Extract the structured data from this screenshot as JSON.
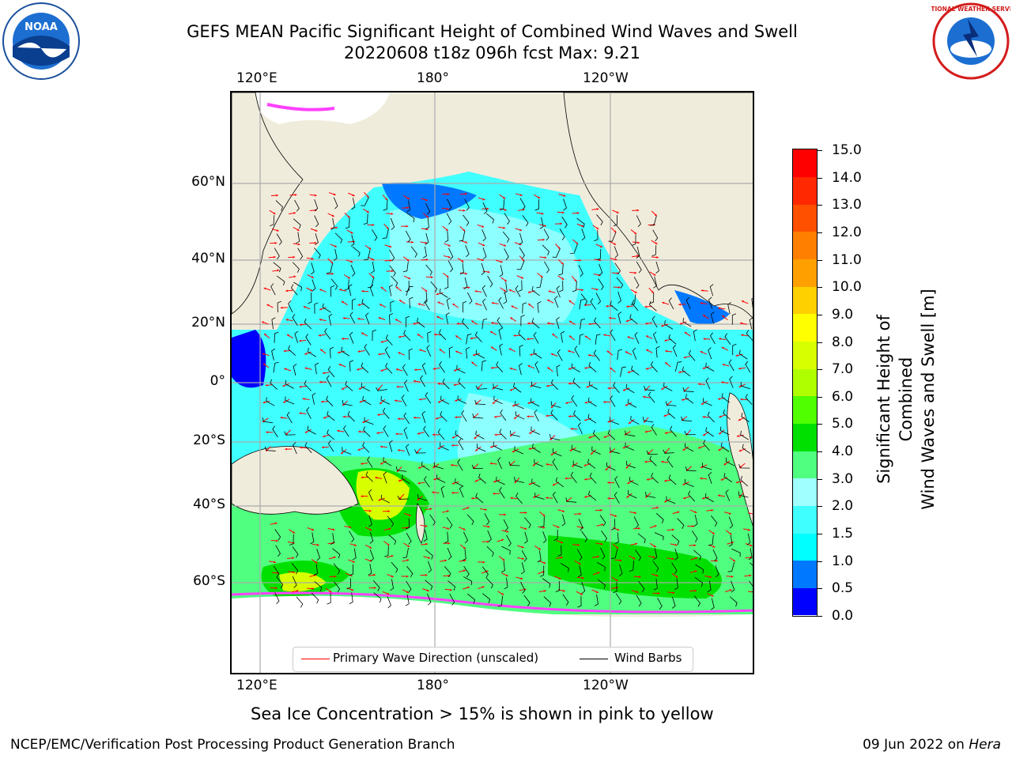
{
  "title_line1": "GEFS MEAN Pacific Significant Height of Combined Wind Waves and Swell",
  "title_line2": "20220608 t18z 096h fcst   Max: 9.21",
  "lon_labels": [
    "120°E",
    "180°",
    "120°W"
  ],
  "lat_labels": [
    "60°N",
    "40°N",
    "20°N",
    "0°",
    "20°S",
    "40°S",
    "60°S"
  ],
  "colorbar": {
    "label_line1": "Significant Height of Combined",
    "label_line2": "Wind Waves and Swell [m]",
    "ticks": [
      "15.0",
      "14.0",
      "13.0",
      "12.0",
      "11.0",
      "10.0",
      "9.0",
      "8.0",
      "7.0",
      "6.0",
      "5.0",
      "4.0",
      "3.0",
      "2.0",
      "1.5",
      "1.0",
      "0.5",
      "0.0"
    ],
    "colors": [
      "#0000ff",
      "#0078ff",
      "#00ffff",
      "#40ffff",
      "#a0ffff",
      "#50ff80",
      "#00e000",
      "#50ff00",
      "#b0ff00",
      "#d8ff00",
      "#ffff00",
      "#ffd000",
      "#ffa000",
      "#ff8000",
      "#ff5000",
      "#ff2800",
      "#ff0000"
    ]
  },
  "legend": {
    "wave_direction": "Primary Wave Direction (unscaled)",
    "wind_barbs": "Wind Barbs",
    "wave_color": "#ff0000",
    "barb_color": "#000000"
  },
  "footer_note": "Sea Ice Concentration > 15% is shown in pink to yellow",
  "footer_left": "NCEP/EMC/Verification Post Processing Product Generation Branch",
  "footer_right_date": "09 Jun 2022 on ",
  "footer_right_host": "Hera",
  "noaa_logo_text": "NOAA",
  "nws_logo_text": "NATIONAL WEATHER SERVICE"
}
